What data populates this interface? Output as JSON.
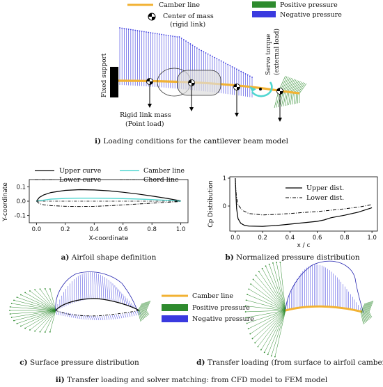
{
  "colors": {
    "camber": "#f2b233",
    "positive": "#2e8b2e",
    "negative": "#3a3adf",
    "cyan": "#4fd6d0",
    "mass_marker": "#000000"
  },
  "top": {
    "legend": {
      "camber_line": "Camber line",
      "positive_pressure": "Positive pressure",
      "center_of_mass_1": "Center of mass",
      "center_of_mass_2": "(rigid link)",
      "negative_pressure": "Negative pressure"
    },
    "fixed_support": "Fixed support",
    "servo_1": "Servo torque",
    "servo_2": "(external load)",
    "rigid_1": "Rigid link mass",
    "rigid_2": "(Point load)",
    "caption_label": "i)",
    "caption_text": "Loading conditions for the cantilever beam model"
  },
  "panel_a": {
    "legend": {
      "upper": "Upper curve",
      "lower": "Lower curve",
      "camber": "Camber line",
      "chord": "Chord line"
    },
    "xlabel": "X-coordinate",
    "ylabel": "Y-coordinate",
    "caption_label": "a)",
    "caption_text": "Airfoil shape definition"
  },
  "panel_b": {
    "legend": {
      "upper": "Upper dist.",
      "lower": "Lower dist."
    },
    "xlabel": "x / c",
    "ylabel": "Cp Distribution",
    "caption_label": "b)",
    "caption_text": "Normalized pressure distribution"
  },
  "panel_c": {
    "caption_label": "c)",
    "caption_text": "Surface pressure distribution"
  },
  "panel_d": {
    "caption_label": "d)",
    "caption_text": "Transfer loading (from surface to airfoil camber)"
  },
  "mid_legend": {
    "camber": "Camber line",
    "positive": "Positive pressure",
    "negative": "Negative pressure"
  },
  "bottom_caption": {
    "label": "ii)",
    "text": "Transfer loading and solver matching: from CFD model to FEM model"
  },
  "chart_data": [
    {
      "type": "line",
      "panel": "a",
      "xlabel": "X-coordinate",
      "ylabel": "Y-coordinate",
      "xlim": [
        -0.05,
        1.05
      ],
      "ylim": [
        -0.15,
        0.15
      ],
      "xticks": [
        0.0,
        0.2,
        0.4,
        0.6,
        0.8,
        1.0
      ],
      "yticks": [
        -0.1,
        0.0,
        0.1
      ],
      "legend_position": "top",
      "series": [
        {
          "name": "Upper curve",
          "x": [
            0,
            0.02,
            0.05,
            0.1,
            0.2,
            0.3,
            0.4,
            0.5,
            0.6,
            0.7,
            0.8,
            0.9,
            1.0
          ],
          "y": [
            0,
            0.026,
            0.043,
            0.06,
            0.075,
            0.08,
            0.078,
            0.072,
            0.062,
            0.05,
            0.036,
            0.02,
            0.002
          ]
        },
        {
          "name": "Lower curve",
          "x": [
            0,
            0.02,
            0.05,
            0.1,
            0.2,
            0.3,
            0.4,
            0.5,
            0.6,
            0.7,
            0.8,
            0.9,
            1.0
          ],
          "y": [
            0,
            -0.017,
            -0.025,
            -0.031,
            -0.036,
            -0.037,
            -0.036,
            -0.032,
            -0.026,
            -0.02,
            -0.014,
            -0.008,
            -0.002
          ]
        },
        {
          "name": "Camber line",
          "x": [
            0,
            0.1,
            0.2,
            0.3,
            0.4,
            0.5,
            0.6,
            0.7,
            0.8,
            0.9,
            1.0
          ],
          "y": [
            0,
            0.014,
            0.019,
            0.021,
            0.021,
            0.02,
            0.018,
            0.015,
            0.011,
            0.006,
            0.0
          ]
        },
        {
          "name": "Chord line",
          "x": [
            0,
            1.0
          ],
          "y": [
            0,
            0
          ]
        }
      ]
    },
    {
      "type": "line",
      "panel": "b",
      "xlabel": "x / c",
      "ylabel": "Cp Distribution",
      "xlim": [
        -0.04,
        1.04
      ],
      "ylim": [
        -0.9,
        1.05
      ],
      "xticks": [
        0.0,
        0.2,
        0.4,
        0.6,
        0.8,
        1.0
      ],
      "yticks": [
        0,
        1
      ],
      "legend_position": "top-right",
      "series": [
        {
          "name": "Upper dist.",
          "x": [
            0,
            0.005,
            0.01,
            0.02,
            0.04,
            0.07,
            0.1,
            0.2,
            0.3,
            0.4,
            0.5,
            0.6,
            0.65,
            0.7,
            0.8,
            0.9,
            1.0
          ],
          "y": [
            1.0,
            0.4,
            -0.1,
            -0.45,
            -0.62,
            -0.7,
            -0.72,
            -0.73,
            -0.7,
            -0.65,
            -0.6,
            -0.55,
            -0.5,
            -0.42,
            -0.33,
            -0.22,
            -0.06
          ]
        },
        {
          "name": "Lower dist.",
          "x": [
            0,
            0.005,
            0.01,
            0.02,
            0.05,
            0.1,
            0.2,
            0.3,
            0.4,
            0.5,
            0.6,
            0.7,
            0.8,
            0.9,
            1.0
          ],
          "y": [
            1.0,
            0.55,
            0.3,
            0.05,
            -0.15,
            -0.27,
            -0.32,
            -0.3,
            -0.27,
            -0.23,
            -0.2,
            -0.15,
            -0.1,
            -0.04,
            0.05
          ]
        }
      ]
    }
  ]
}
